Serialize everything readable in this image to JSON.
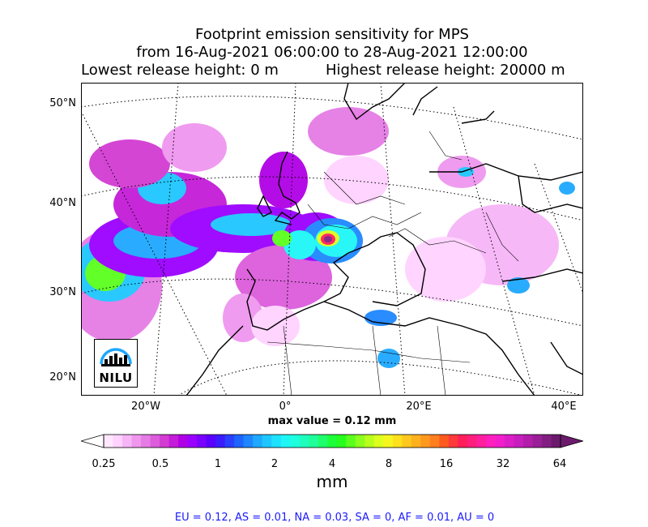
{
  "title": {
    "line1": "Footprint emission sensitivity for MPS",
    "line2": "from 16-Aug-2021 06:00:00 to 28-Aug-2021 12:00:00",
    "line3_left": "Lowest release height: 0 m",
    "line3_right": "Highest release height: 20000 m"
  },
  "map": {
    "lat_labels": [
      "50°N",
      "40°N",
      "30°N",
      "20°N"
    ],
    "lon_labels": [
      "20°W",
      "0°",
      "20°E",
      "40°E"
    ],
    "max_value_text": "max value = 0.12 mm",
    "logo_text": "NILU"
  },
  "colorbar": {
    "ticks": [
      "0.25",
      "0.5",
      "1",
      "2",
      "4",
      "8",
      "16",
      "32",
      "64"
    ],
    "unit": "mm",
    "colors": [
      "#ffe8ff",
      "#ffd2ff",
      "#f6b5f6",
      "#ef96ef",
      "#e57be5",
      "#dc5cdc",
      "#d23cd2",
      "#c41cd8",
      "#b000e6",
      "#9a00ff",
      "#7a00ff",
      "#5a00ff",
      "#3a1cff",
      "#2a40ff",
      "#1e64ff",
      "#1e86ff",
      "#1ea8ff",
      "#1ec6ff",
      "#1ee0ff",
      "#1ef6f6",
      "#1effdf",
      "#1effbe",
      "#1eff9a",
      "#1eff6e",
      "#1eff3c",
      "#26ff1e",
      "#5aff1e",
      "#8cff1e",
      "#b8ff1e",
      "#dcff1e",
      "#f6f61e",
      "#ffe01e",
      "#ffc81e",
      "#ffb01e",
      "#ff981e",
      "#ff7e1e",
      "#ff5a1e",
      "#ff3a3a",
      "#ff1e5a",
      "#ff1e7e",
      "#ff1e9e",
      "#ff1ebe",
      "#f21ecc",
      "#dc1ec8",
      "#c81ebe",
      "#b21eaa",
      "#9a1e96",
      "#821e82",
      "#6c1a6c"
    ]
  },
  "region_summary": "EU = 0.12,  AS = 0.01,  NA = 0.03,  SA = 0,  AF = 0.01,  AU = 0"
}
